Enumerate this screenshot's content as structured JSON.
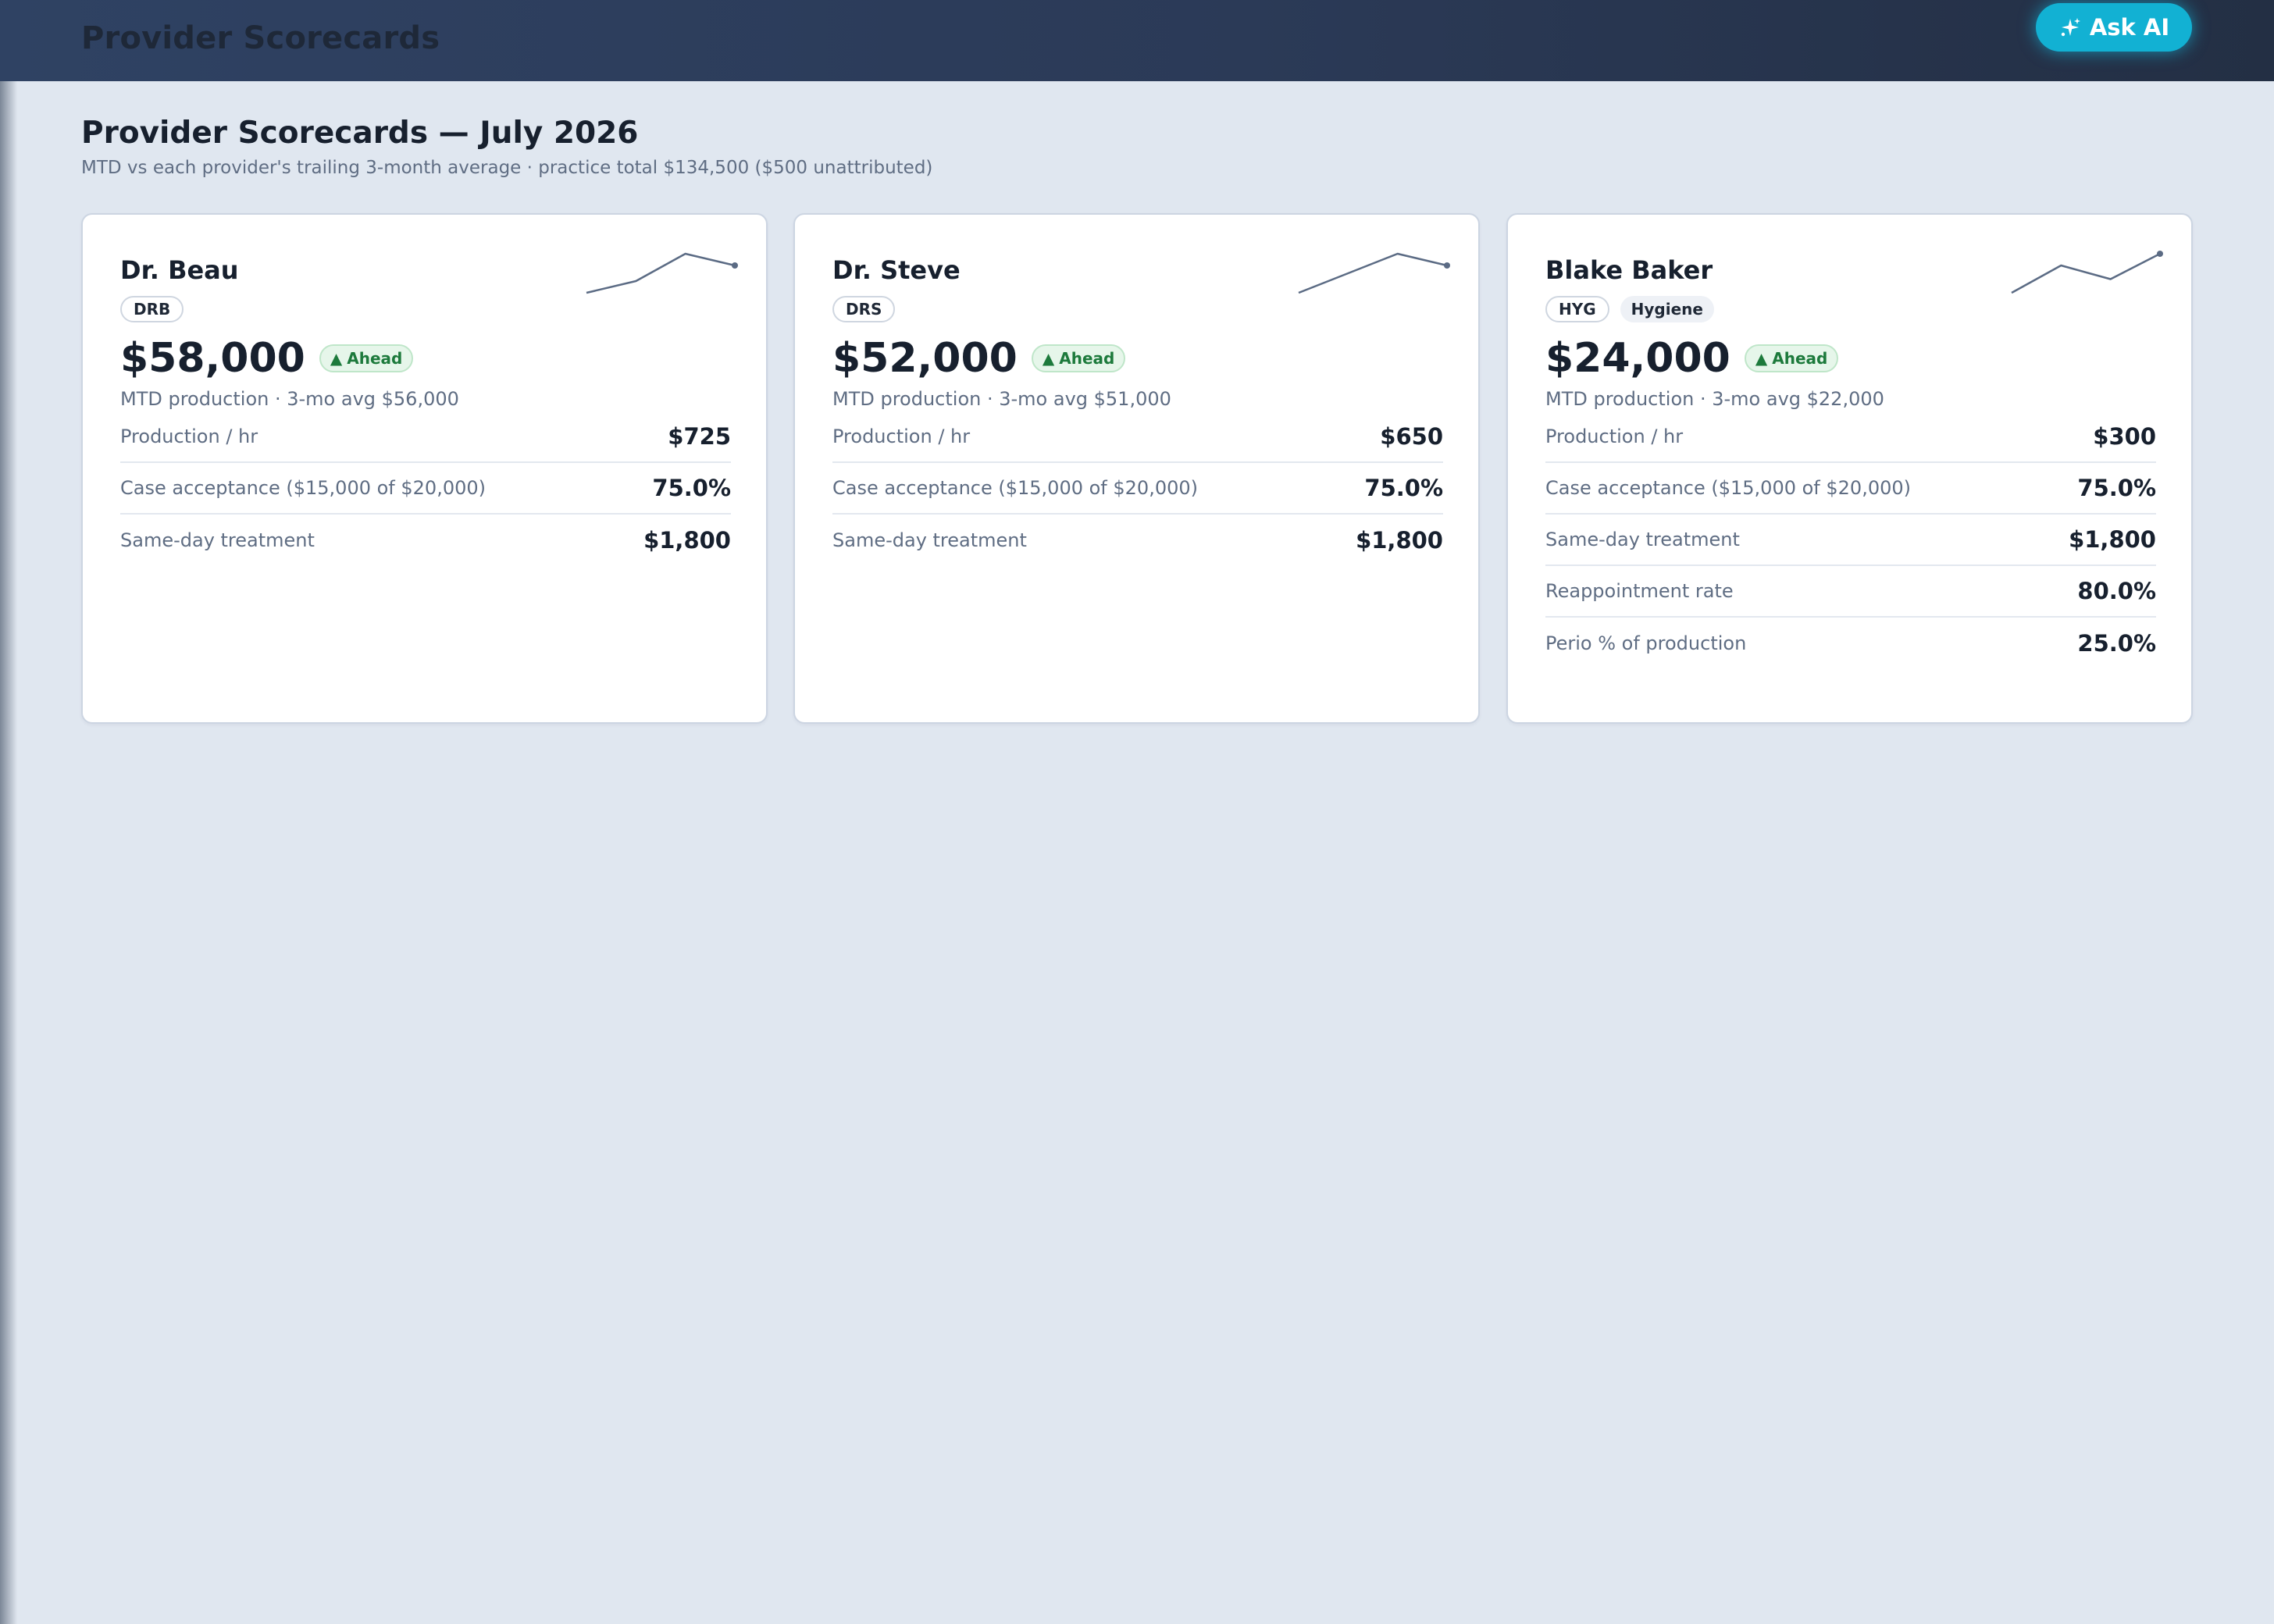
{
  "header": {
    "title": "Provider Scorecards",
    "ask_ai_label": "Ask AI",
    "ask_ai_icon": "sparkle-icon"
  },
  "page": {
    "heading": "Provider Scorecards — July 2026",
    "subtitle": "MTD vs each provider's trailing 3-month average · practice total $134,500 ($500 unattributed)"
  },
  "colors": {
    "accent": "#12b1d3",
    "header_bg": "#2f4263",
    "ahead_green": "#1d7a3c",
    "sparkline": "#5b6b84"
  },
  "cards": [
    {
      "name": "Dr. Beau",
      "code": "DRB",
      "role": "",
      "amount": "$58,000",
      "badge": "Ahead",
      "badge_icon": "triangle-up-icon",
      "subtitle": "MTD production · 3-mo avg $56,000",
      "sparkline": [
        0.0,
        0.3,
        1.0,
        0.7
      ],
      "metrics": [
        {
          "label": "Production / hr",
          "value": "$725"
        },
        {
          "label": "Case acceptance ($15,000 of $20,000)",
          "value": "75.0%"
        },
        {
          "label": "Same-day treatment",
          "value": "$1,800"
        }
      ]
    },
    {
      "name": "Dr. Steve",
      "code": "DRS",
      "role": "",
      "amount": "$52,000",
      "badge": "Ahead",
      "badge_icon": "triangle-up-icon",
      "subtitle": "MTD production · 3-mo avg $51,000",
      "sparkline": [
        0.0,
        0.5,
        1.0,
        0.7
      ],
      "metrics": [
        {
          "label": "Production / hr",
          "value": "$650"
        },
        {
          "label": "Case acceptance ($15,000 of $20,000)",
          "value": "75.0%"
        },
        {
          "label": "Same-day treatment",
          "value": "$1,800"
        }
      ]
    },
    {
      "name": "Blake Baker",
      "code": "HYG",
      "role": "Hygiene",
      "amount": "$24,000",
      "badge": "Ahead",
      "badge_icon": "triangle-up-icon",
      "subtitle": "MTD production · 3-mo avg $22,000",
      "sparkline": [
        0.0,
        0.7,
        0.35,
        1.0
      ],
      "metrics": [
        {
          "label": "Production / hr",
          "value": "$300"
        },
        {
          "label": "Case acceptance ($15,000 of $20,000)",
          "value": "75.0%"
        },
        {
          "label": "Same-day treatment",
          "value": "$1,800"
        },
        {
          "label": "Reappointment rate",
          "value": "80.0%"
        },
        {
          "label": "Perio % of production",
          "value": "25.0%"
        }
      ]
    }
  ]
}
